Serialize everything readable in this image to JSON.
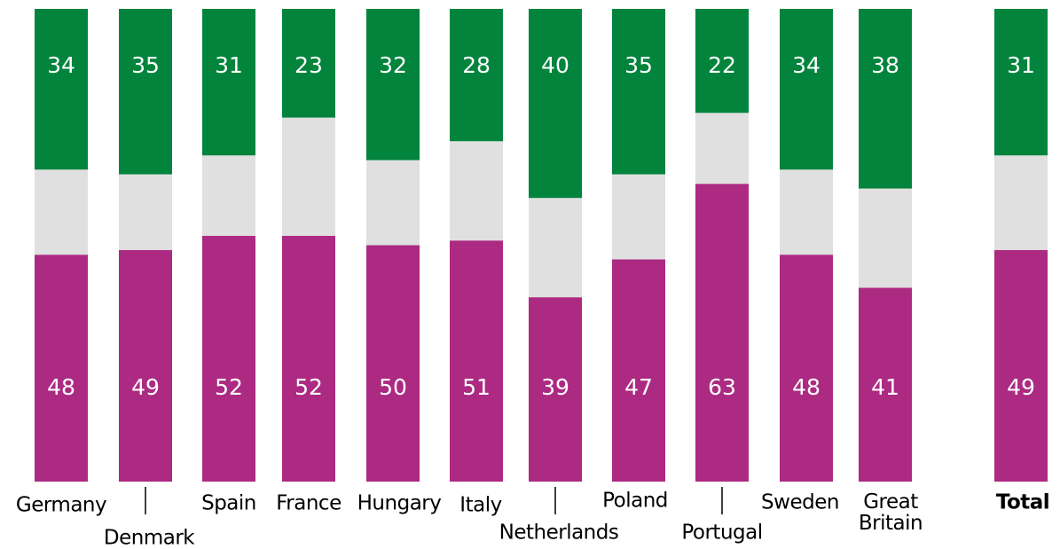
{
  "chart_data": {
    "type": "stacked-bar",
    "categories": [
      "Germany",
      "Denmark",
      "Spain",
      "France",
      "Hungary",
      "Italy",
      "Netherlands",
      "Poland",
      "Portugal",
      "Sweden",
      "Great Britain",
      "Total"
    ],
    "series": [
      {
        "color": "#ac2a82",
        "values": [
          48,
          49,
          52,
          52,
          50,
          51,
          39,
          47,
          63,
          48,
          41,
          49
        ]
      },
      {
        "color": "#e0e0e0",
        "values": [
          18,
          16,
          17,
          25,
          18,
          21,
          21,
          18,
          15,
          18,
          21,
          20
        ]
      },
      {
        "color": "#02843d",
        "values": [
          34,
          35,
          31,
          23,
          32,
          28,
          40,
          35,
          22,
          34,
          38,
          31
        ]
      }
    ],
    "ylim": [
      0,
      100
    ]
  }
}
